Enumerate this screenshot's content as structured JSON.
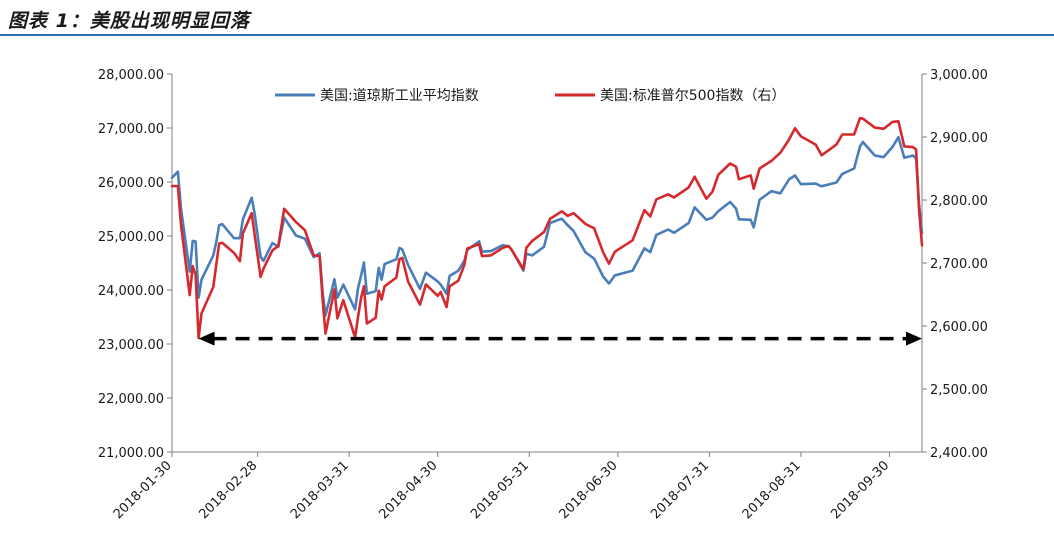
{
  "figure_title": "图表 1：美股出现明显回落",
  "colors": {
    "dow": "#4a7ebb",
    "sp500": "#d42a2f",
    "axis": "#7f7f7f",
    "rule": "#2f6fb0",
    "arrow": "#000000"
  },
  "chart_data": {
    "type": "line",
    "title": "",
    "xlabel": "",
    "ylabel": "",
    "x_range": [
      "2018-01-30",
      "2018-10-11"
    ],
    "x_ticks": [
      "2018-01-30",
      "2018-02-28",
      "2018-03-31",
      "2018-04-30",
      "2018-05-31",
      "2018-06-30",
      "2018-07-31",
      "2018-08-31",
      "2018-09-30"
    ],
    "y_left": {
      "min": 21000,
      "max": 28000,
      "step": 1000,
      "ticks": [
        "21,000.00",
        "22,000.00",
        "23,000.00",
        "24,000.00",
        "25,000.00",
        "26,000.00",
        "27,000.00",
        "28,000.00"
      ]
    },
    "y_right": {
      "min": 2400,
      "max": 3000,
      "step": 100,
      "ticks": [
        "2,400.00",
        "2,500.00",
        "2,600.00",
        "2,700.00",
        "2,800.00",
        "2,900.00",
        "3,000.00"
      ]
    },
    "grid": false,
    "legend_position": "top",
    "series": [
      {
        "name": "美国:道琼斯工业平均指数",
        "axis": "left",
        "points": [
          [
            "2018-01-30",
            26080
          ],
          [
            "2018-02-01",
            26190
          ],
          [
            "2018-02-02",
            25520
          ],
          [
            "2018-02-05",
            24340
          ],
          [
            "2018-02-06",
            24910
          ],
          [
            "2018-02-07",
            24900
          ],
          [
            "2018-02-08",
            23860
          ],
          [
            "2018-02-09",
            24190
          ],
          [
            "2018-02-13",
            24640
          ],
          [
            "2018-02-14",
            24890
          ],
          [
            "2018-02-15",
            25200
          ],
          [
            "2018-02-16",
            25220
          ],
          [
            "2018-02-20",
            24960
          ],
          [
            "2018-02-22",
            24960
          ],
          [
            "2018-02-23",
            25310
          ],
          [
            "2018-02-26",
            25710
          ],
          [
            "2018-02-27",
            25410
          ],
          [
            "2018-03-01",
            24610
          ],
          [
            "2018-03-02",
            24540
          ],
          [
            "2018-03-05",
            24870
          ],
          [
            "2018-03-07",
            24800
          ],
          [
            "2018-03-09",
            25340
          ],
          [
            "2018-03-13",
            25010
          ],
          [
            "2018-03-16",
            24950
          ],
          [
            "2018-03-19",
            24610
          ],
          [
            "2018-03-21",
            24680
          ],
          [
            "2018-03-22",
            23960
          ],
          [
            "2018-03-23",
            23530
          ],
          [
            "2018-03-26",
            24200
          ],
          [
            "2018-03-27",
            23860
          ],
          [
            "2018-03-29",
            24100
          ],
          [
            "2018-04-02",
            23640
          ],
          [
            "2018-04-03",
            24030
          ],
          [
            "2018-04-04",
            24260
          ],
          [
            "2018-04-05",
            24510
          ],
          [
            "2018-04-06",
            23930
          ],
          [
            "2018-04-09",
            23980
          ],
          [
            "2018-04-10",
            24410
          ],
          [
            "2018-04-11",
            24190
          ],
          [
            "2018-04-12",
            24480
          ],
          [
            "2018-04-16",
            24570
          ],
          [
            "2018-04-17",
            24780
          ],
          [
            "2018-04-18",
            24750
          ],
          [
            "2018-04-20",
            24460
          ],
          [
            "2018-04-24",
            24020
          ],
          [
            "2018-04-26",
            24320
          ],
          [
            "2018-04-30",
            24160
          ],
          [
            "2018-05-01",
            24100
          ],
          [
            "2018-05-03",
            23930
          ],
          [
            "2018-05-04",
            24260
          ],
          [
            "2018-05-07",
            24360
          ],
          [
            "2018-05-09",
            24540
          ],
          [
            "2018-05-10",
            24740
          ],
          [
            "2018-05-14",
            24900
          ],
          [
            "2018-05-15",
            24710
          ],
          [
            "2018-05-18",
            24720
          ],
          [
            "2018-05-22",
            24830
          ],
          [
            "2018-05-24",
            24810
          ],
          [
            "2018-05-25",
            24750
          ],
          [
            "2018-05-29",
            24360
          ],
          [
            "2018-05-30",
            24670
          ],
          [
            "2018-06-01",
            24640
          ],
          [
            "2018-06-05",
            24800
          ],
          [
            "2018-06-07",
            25240
          ],
          [
            "2018-06-11",
            25320
          ],
          [
            "2018-06-13",
            25200
          ],
          [
            "2018-06-15",
            25090
          ],
          [
            "2018-06-19",
            24700
          ],
          [
            "2018-06-22",
            24580
          ],
          [
            "2018-06-25",
            24250
          ],
          [
            "2018-06-27",
            24120
          ],
          [
            "2018-06-29",
            24270
          ],
          [
            "2018-07-05",
            24360
          ],
          [
            "2018-07-09",
            24770
          ],
          [
            "2018-07-11",
            24700
          ],
          [
            "2018-07-13",
            25020
          ],
          [
            "2018-07-17",
            25120
          ],
          [
            "2018-07-19",
            25060
          ],
          [
            "2018-07-24",
            25240
          ],
          [
            "2018-07-26",
            25530
          ],
          [
            "2018-07-30",
            25300
          ],
          [
            "2018-08-01",
            25340
          ],
          [
            "2018-08-03",
            25460
          ],
          [
            "2018-08-07",
            25630
          ],
          [
            "2018-08-09",
            25510
          ],
          [
            "2018-08-10",
            25310
          ],
          [
            "2018-08-14",
            25300
          ],
          [
            "2018-08-15",
            25160
          ],
          [
            "2018-08-17",
            25670
          ],
          [
            "2018-08-21",
            25830
          ],
          [
            "2018-08-24",
            25790
          ],
          [
            "2018-08-27",
            26050
          ],
          [
            "2018-08-29",
            26120
          ],
          [
            "2018-08-31",
            25960
          ],
          [
            "2018-09-05",
            25970
          ],
          [
            "2018-09-07",
            25920
          ],
          [
            "2018-09-12",
            25990
          ],
          [
            "2018-09-14",
            26150
          ],
          [
            "2018-09-18",
            26250
          ],
          [
            "2018-09-20",
            26660
          ],
          [
            "2018-09-21",
            26740
          ],
          [
            "2018-09-25",
            26490
          ],
          [
            "2018-09-28",
            26460
          ],
          [
            "2018-10-01",
            26650
          ],
          [
            "2018-10-03",
            26830
          ],
          [
            "2018-10-05",
            26450
          ],
          [
            "2018-10-08",
            26490
          ],
          [
            "2018-10-09",
            26430
          ],
          [
            "2018-10-10",
            25600
          ],
          [
            "2018-10-11",
            25050
          ]
        ]
      },
      {
        "name": "美国:标准普尔500指数（右）",
        "axis": "right",
        "points": [
          [
            "2018-01-30",
            2822
          ],
          [
            "2018-02-01",
            2822
          ],
          [
            "2018-02-02",
            2762
          ],
          [
            "2018-02-05",
            2649
          ],
          [
            "2018-02-06",
            2695
          ],
          [
            "2018-02-07",
            2681
          ],
          [
            "2018-02-08",
            2581
          ],
          [
            "2018-02-09",
            2620
          ],
          [
            "2018-02-13",
            2662
          ],
          [
            "2018-02-14",
            2698
          ],
          [
            "2018-02-15",
            2731
          ],
          [
            "2018-02-16",
            2732
          ],
          [
            "2018-02-20",
            2716
          ],
          [
            "2018-02-22",
            2703
          ],
          [
            "2018-02-23",
            2747
          ],
          [
            "2018-02-26",
            2779
          ],
          [
            "2018-02-27",
            2744
          ],
          [
            "2018-03-01",
            2678
          ],
          [
            "2018-03-02",
            2691
          ],
          [
            "2018-03-05",
            2720
          ],
          [
            "2018-03-07",
            2727
          ],
          [
            "2018-03-09",
            2786
          ],
          [
            "2018-03-13",
            2765
          ],
          [
            "2018-03-16",
            2752
          ],
          [
            "2018-03-19",
            2712
          ],
          [
            "2018-03-21",
            2711
          ],
          [
            "2018-03-22",
            2643
          ],
          [
            "2018-03-23",
            2588
          ],
          [
            "2018-03-26",
            2658
          ],
          [
            "2018-03-27",
            2612
          ],
          [
            "2018-03-29",
            2641
          ],
          [
            "2018-04-02",
            2582
          ],
          [
            "2018-04-03",
            2614
          ],
          [
            "2018-04-04",
            2644
          ],
          [
            "2018-04-05",
            2663
          ],
          [
            "2018-04-06",
            2604
          ],
          [
            "2018-04-09",
            2613
          ],
          [
            "2018-04-10",
            2656
          ],
          [
            "2018-04-11",
            2642
          ],
          [
            "2018-04-12",
            2663
          ],
          [
            "2018-04-16",
            2677
          ],
          [
            "2018-04-17",
            2706
          ],
          [
            "2018-04-18",
            2708
          ],
          [
            "2018-04-20",
            2670
          ],
          [
            "2018-04-24",
            2634
          ],
          [
            "2018-04-26",
            2666
          ],
          [
            "2018-04-30",
            2648
          ],
          [
            "2018-05-01",
            2654
          ],
          [
            "2018-05-03",
            2630
          ],
          [
            "2018-05-04",
            2663
          ],
          [
            "2018-05-07",
            2672
          ],
          [
            "2018-05-09",
            2697
          ],
          [
            "2018-05-10",
            2723
          ],
          [
            "2018-05-14",
            2730
          ],
          [
            "2018-05-15",
            2711
          ],
          [
            "2018-05-18",
            2712
          ],
          [
            "2018-05-22",
            2724
          ],
          [
            "2018-05-24",
            2727
          ],
          [
            "2018-05-25",
            2721
          ],
          [
            "2018-05-29",
            2690
          ],
          [
            "2018-05-30",
            2724
          ],
          [
            "2018-06-01",
            2735
          ],
          [
            "2018-06-05",
            2749
          ],
          [
            "2018-06-07",
            2770
          ],
          [
            "2018-06-11",
            2782
          ],
          [
            "2018-06-13",
            2775
          ],
          [
            "2018-06-15",
            2779
          ],
          [
            "2018-06-19",
            2762
          ],
          [
            "2018-06-22",
            2755
          ],
          [
            "2018-06-25",
            2717
          ],
          [
            "2018-06-27",
            2699
          ],
          [
            "2018-06-29",
            2718
          ],
          [
            "2018-07-05",
            2736
          ],
          [
            "2018-07-09",
            2784
          ],
          [
            "2018-07-11",
            2774
          ],
          [
            "2018-07-13",
            2801
          ],
          [
            "2018-07-17",
            2809
          ],
          [
            "2018-07-19",
            2804
          ],
          [
            "2018-07-24",
            2820
          ],
          [
            "2018-07-26",
            2837
          ],
          [
            "2018-07-30",
            2802
          ],
          [
            "2018-08-01",
            2813
          ],
          [
            "2018-08-03",
            2840
          ],
          [
            "2018-08-07",
            2858
          ],
          [
            "2018-08-09",
            2853
          ],
          [
            "2018-08-10",
            2833
          ],
          [
            "2018-08-14",
            2839
          ],
          [
            "2018-08-15",
            2818
          ],
          [
            "2018-08-17",
            2850
          ],
          [
            "2018-08-21",
            2862
          ],
          [
            "2018-08-24",
            2875
          ],
          [
            "2018-08-27",
            2896
          ],
          [
            "2018-08-29",
            2914
          ],
          [
            "2018-08-31",
            2901
          ],
          [
            "2018-09-05",
            2888
          ],
          [
            "2018-09-07",
            2871
          ],
          [
            "2018-09-12",
            2888
          ],
          [
            "2018-09-14",
            2904
          ],
          [
            "2018-09-18",
            2904
          ],
          [
            "2018-09-20",
            2930
          ],
          [
            "2018-09-21",
            2929
          ],
          [
            "2018-09-25",
            2915
          ],
          [
            "2018-09-28",
            2913
          ],
          [
            "2018-10-01",
            2924
          ],
          [
            "2018-10-03",
            2925
          ],
          [
            "2018-10-05",
            2885
          ],
          [
            "2018-10-08",
            2884
          ],
          [
            "2018-10-09",
            2880
          ],
          [
            "2018-10-10",
            2786
          ],
          [
            "2018-10-11",
            2728
          ]
        ]
      }
    ],
    "annotations": [
      {
        "type": "double-arrow",
        "style": "dashed",
        "from": "2018-02-08",
        "to": "2018-10-11",
        "y_left": 23100
      }
    ]
  }
}
